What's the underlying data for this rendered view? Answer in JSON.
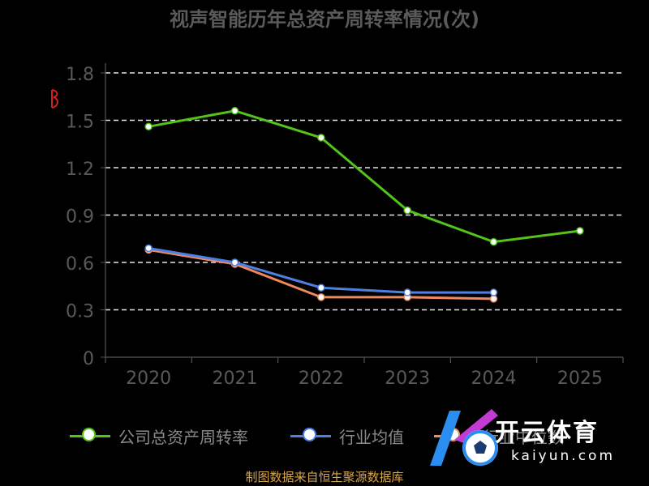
{
  "chart_data": {
    "type": "line",
    "title": "视声智能历年总资产周转率情况(次)",
    "y_unit_label": "",
    "categories": [
      "2020",
      "2021",
      "2022",
      "2023",
      "2024",
      "2025"
    ],
    "ylim": [
      0,
      1.8
    ],
    "yticks": [
      "0",
      "0.3",
      "0.6",
      "0.9",
      "1.2",
      "1.5",
      "1.8"
    ],
    "grid": true,
    "legend_position": "bottom",
    "series": [
      {
        "name": "公司总资产周转率",
        "color": "#52c41a",
        "values": [
          1.46,
          1.56,
          1.39,
          0.93,
          0.73,
          0.8
        ]
      },
      {
        "name": "行业均值",
        "color": "#4f7fe0",
        "values": [
          0.69,
          0.6,
          0.44,
          0.41,
          0.41,
          null
        ]
      },
      {
        "name": "行业中位数",
        "color": "#f08a5d",
        "values": [
          0.68,
          0.59,
          0.38,
          0.38,
          0.37,
          null
        ]
      }
    ]
  },
  "source": "制图数据来自恒生聚源数据库",
  "watermark": {
    "brand": "开云体育",
    "domain": "kaiyun.com"
  }
}
